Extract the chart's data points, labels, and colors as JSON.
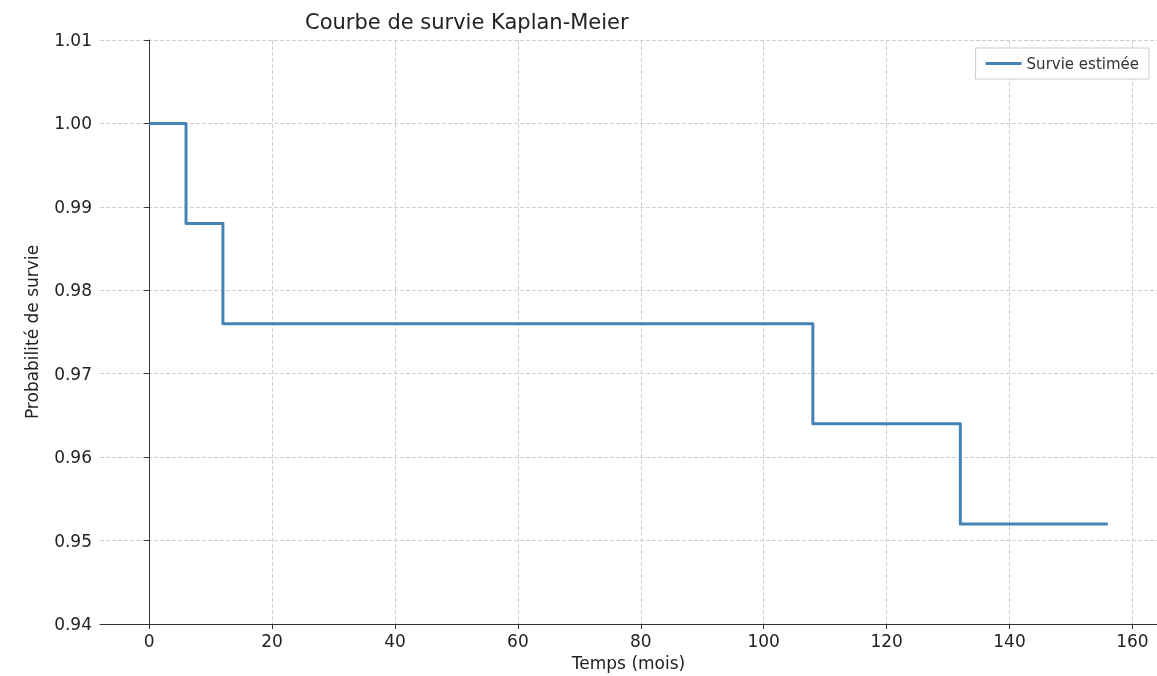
{
  "chart_data": {
    "type": "step",
    "title": "Courbe de survie Kaplan-Meier",
    "xlabel": "Temps (mois)",
    "ylabel": "Probabilité de survie",
    "series": [
      {
        "name": "Survie estimée",
        "color": "#4682b4",
        "x": [
          0,
          6,
          12,
          108,
          132,
          156
        ],
        "values": [
          1.0,
          0.988,
          0.976,
          0.964,
          0.952,
          0.952
        ]
      }
    ],
    "xlim": [
      -8,
      164
    ],
    "xticks": [
      0,
      20,
      40,
      60,
      80,
      100,
      120,
      140,
      160
    ],
    "ylim": [
      0.94,
      1.01
    ],
    "yticks": [
      0.94,
      0.95,
      0.96,
      0.97,
      0.98,
      0.99,
      {
        "value": 1.0,
        "label": "1.00"
      },
      1.01
    ],
    "grid": true,
    "legend": "top right",
    "marker": "none",
    "line_style": "solid"
  }
}
